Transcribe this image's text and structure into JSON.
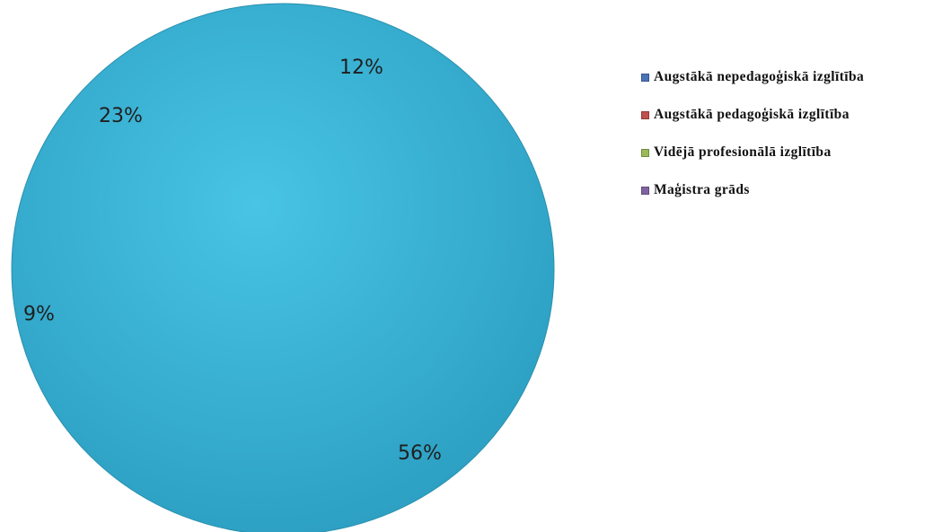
{
  "chart_data": {
    "type": "pie",
    "categories": [
      "Augstākā nepedagoģiskā izglītība",
      "Augstākā pedagoģiskā izglītība",
      "Vidējā profesionālā izglītība",
      "Maģistra grāds"
    ],
    "legend_colors": [
      "#4a73b8",
      "#c0504d",
      "#9bbb59",
      "#8064a2"
    ],
    "slice_labels": [
      {
        "text": "12%",
        "value": 12
      },
      {
        "text": "23%",
        "value": 23
      },
      {
        "text": "9%",
        "value": 9
      },
      {
        "text": "56%",
        "value": 56
      }
    ],
    "pie_fill_color": "#3ab4d6",
    "legend_placement": "right",
    "title": ""
  }
}
